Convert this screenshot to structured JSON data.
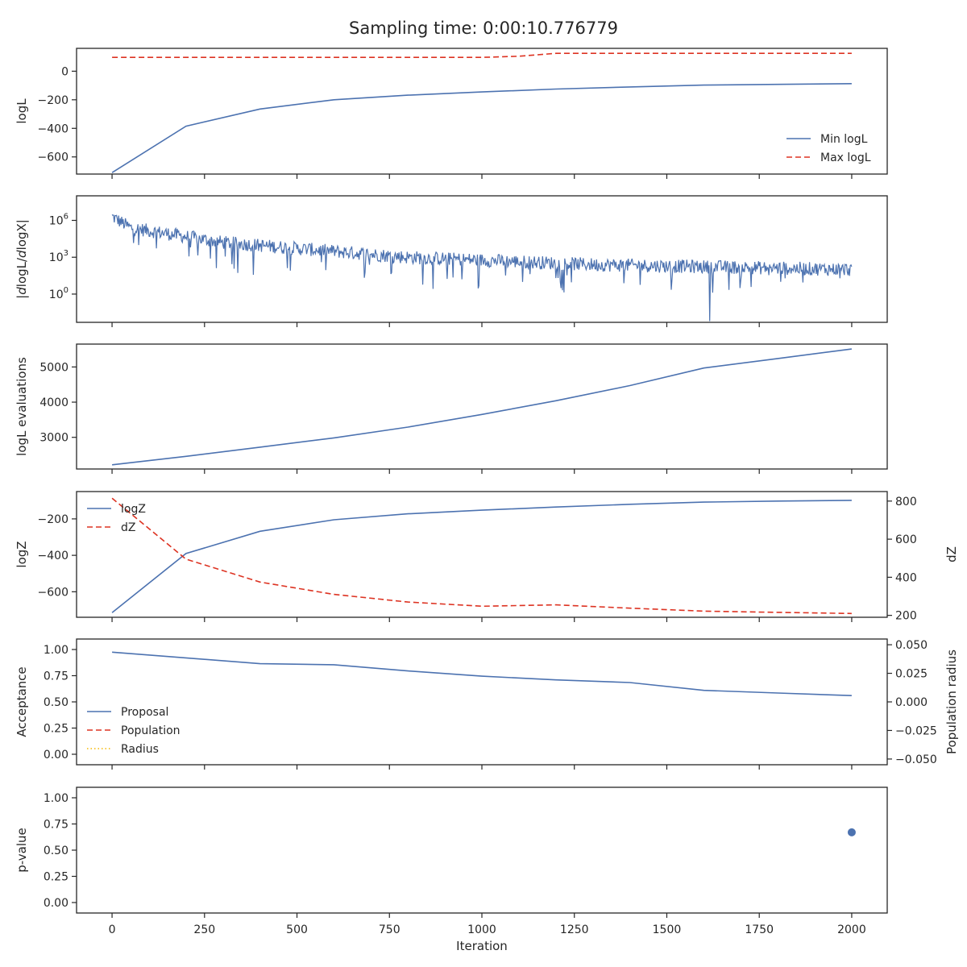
{
  "figure": {
    "title": "Sampling time: 0:00:10.776779",
    "xlabel": "Iteration",
    "x_ticks": [
      0,
      250,
      500,
      750,
      1000,
      1250,
      1500,
      1750,
      2000
    ],
    "xlim": [
      -96,
      2096
    ]
  },
  "colors": {
    "blue": "#4c72b0",
    "red": "#dd3322",
    "gold": "#f5b800",
    "axis": "#262626",
    "text": "#262626"
  },
  "chart_data": [
    {
      "type": "line",
      "ylabel": "logL",
      "ylim": [
        -720,
        160
      ],
      "y_ticks": [
        0,
        -200,
        -400,
        -600
      ],
      "y_tick_labels": [
        "0",
        "−200",
        "−400",
        "−600"
      ],
      "legend": {
        "placement": "lower-right"
      },
      "series": [
        {
          "name": "Min logL",
          "style": "solid",
          "color": "#4c72b0",
          "x": [
            0,
            200,
            400,
            600,
            800,
            1000,
            1200,
            1400,
            1600,
            1800,
            2000
          ],
          "y": [
            -710,
            -385,
            -265,
            -200,
            -168,
            -145,
            -125,
            -110,
            -97,
            -92,
            -87
          ]
        },
        {
          "name": "Max logL",
          "style": "dashed",
          "color": "#dd3322",
          "x": [
            0,
            200,
            400,
            600,
            800,
            1000,
            1100,
            1200,
            1400,
            1600,
            1800,
            2000
          ],
          "y": [
            97,
            97,
            97,
            97,
            97,
            97,
            105,
            125,
            125,
            125,
            125,
            125
          ]
        }
      ]
    },
    {
      "type": "line",
      "ylabel": "|dlogL/dlogX|",
      "yscale": "log",
      "ylim_exp": [
        -2.3,
        8.0
      ],
      "y_ticks_exp": [
        6,
        3,
        0
      ],
      "series": [
        {
          "style": "noisy-line",
          "color": "#4c72b0",
          "x_range": [
            0,
            2000
          ],
          "trend_log10": [
            [
              0,
              6.3
            ],
            [
              50,
              5.4
            ],
            [
              300,
              4.2
            ],
            [
              800,
              3.0
            ],
            [
              1300,
              2.4
            ],
            [
              2000,
              2.0
            ]
          ]
        }
      ]
    },
    {
      "type": "line",
      "ylabel": "logL evaluations",
      "ylim": [
        2100,
        5650
      ],
      "y_ticks": [
        3000,
        4000,
        5000
      ],
      "y_tick_labels": [
        "3000",
        "4000",
        "5000"
      ],
      "series": [
        {
          "style": "solid",
          "color": "#4c72b0",
          "x": [
            0,
            200,
            400,
            600,
            800,
            1000,
            1200,
            1400,
            1600,
            1800,
            2000
          ],
          "y": [
            2220,
            2460,
            2720,
            2985,
            3290,
            3650,
            4040,
            4470,
            4970,
            5240,
            5510
          ]
        }
      ]
    },
    {
      "type": "line",
      "ylabel": "logZ",
      "ylabel_right": "dZ",
      "ylim": [
        -740,
        -50
      ],
      "ylim_right": [
        190,
        850
      ],
      "y_ticks": [
        -200,
        -400,
        -600
      ],
      "y_tick_labels": [
        "−200",
        "−400",
        "−600"
      ],
      "y_ticks_right": [
        800,
        600,
        400,
        200
      ],
      "y_tick_labels_right": [
        "800",
        "600",
        "400",
        "200"
      ],
      "legend": {
        "placement": "upper-left"
      },
      "series": [
        {
          "name": "logZ",
          "style": "solid",
          "color": "#4c72b0",
          "axis": "left",
          "x": [
            0,
            200,
            400,
            600,
            800,
            1000,
            1200,
            1400,
            1600,
            1800,
            2000
          ],
          "y": [
            -715,
            -390,
            -268,
            -205,
            -172,
            -152,
            -135,
            -120,
            -108,
            -102,
            -98
          ]
        },
        {
          "name": "dZ",
          "style": "dashed",
          "color": "#dd3322",
          "axis": "right",
          "x": [
            0,
            200,
            400,
            600,
            800,
            1000,
            1200,
            1400,
            1600,
            1800,
            2000
          ],
          "y": [
            815,
            495,
            375,
            310,
            270,
            248,
            255,
            238,
            222,
            216,
            210
          ]
        }
      ]
    },
    {
      "type": "line",
      "ylabel": "Acceptance",
      "ylabel_right": "Population radius",
      "ylim": [
        -0.1,
        1.1
      ],
      "ylim_right": [
        -0.055,
        0.055
      ],
      "y_ticks": [
        1.0,
        0.75,
        0.5,
        0.25,
        0.0
      ],
      "y_tick_labels": [
        "1.00",
        "0.75",
        "0.50",
        "0.25",
        "0.00"
      ],
      "y_ticks_right": [
        0.05,
        0.025,
        0.0,
        -0.025,
        -0.05
      ],
      "y_tick_labels_right": [
        "0.050",
        "0.025",
        "0.000",
        "−0.025",
        "−0.050"
      ],
      "legend": {
        "placement": "center-left"
      },
      "series": [
        {
          "name": "Proposal",
          "style": "solid",
          "color": "#4c72b0",
          "x": [
            0,
            200,
            400,
            600,
            800,
            1000,
            1200,
            1400,
            1600,
            1800,
            2000
          ],
          "y": [
            0.975,
            0.92,
            0.865,
            0.855,
            0.795,
            0.745,
            0.71,
            0.685,
            0.61,
            0.585,
            0.56
          ]
        },
        {
          "name": "Population",
          "style": "dashed",
          "color": "#dd3322",
          "x": [],
          "y": []
        },
        {
          "name": "Radius",
          "style": "dotted",
          "color": "#f5b800",
          "x": [],
          "y": []
        }
      ]
    },
    {
      "type": "scatter",
      "ylabel": "p-value",
      "ylim": [
        -0.1,
        1.1
      ],
      "y_ticks": [
        1.0,
        0.75,
        0.5,
        0.25,
        0.0
      ],
      "y_tick_labels": [
        "1.00",
        "0.75",
        "0.50",
        "0.25",
        "0.00"
      ],
      "series": [
        {
          "style": "marker",
          "color": "#4c72b0",
          "x": [
            2000
          ],
          "y": [
            0.67
          ]
        }
      ]
    }
  ]
}
